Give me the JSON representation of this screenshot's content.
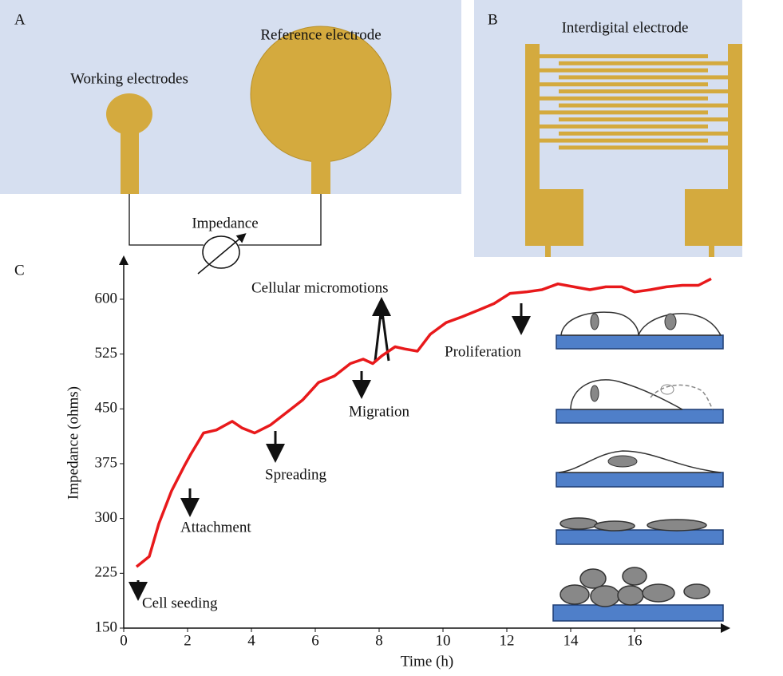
{
  "diagrams": {
    "panel_a": {
      "label": "A",
      "working": "Working electrodes",
      "reference": "Reference electrode",
      "impedance": "Impedance"
    },
    "panel_b": {
      "label": "B",
      "title": "Interdigital electrode"
    }
  },
  "chart_data": {
    "type": "line",
    "label": "C",
    "xlabel": "Time (h)",
    "ylabel": "Impedance (ohms)",
    "color": "#e8191b",
    "x": [
      0.4,
      0.8,
      1.1,
      1.5,
      1.9,
      2.1,
      2.5,
      2.9,
      3.4,
      3.7,
      4.1,
      4.6,
      5.1,
      5.6,
      6.1,
      6.6,
      7.1,
      7.5,
      7.8,
      8.1,
      8.5,
      8.8,
      9.2,
      9.6,
      10.1,
      10.6,
      11.1,
      11.6,
      12.1,
      12.6,
      13.1,
      13.6,
      14.1,
      14.6,
      15.1,
      15.6,
      16.0,
      16.5,
      17.0,
      17.5,
      18.0,
      18.4
    ],
    "values": [
      234,
      248,
      293,
      338,
      372,
      388,
      417,
      421,
      433,
      424,
      417,
      428,
      445,
      462,
      486,
      495,
      512,
      518,
      512,
      523,
      535,
      532,
      529,
      552,
      568,
      576,
      585,
      594,
      608,
      610,
      613,
      621,
      617,
      613,
      617,
      617,
      610,
      613,
      617,
      619,
      619,
      628
    ],
    "xlim": [
      0,
      19
    ],
    "ylim": [
      150,
      660
    ],
    "xticks": [
      0,
      2,
      4,
      6,
      8,
      10,
      12,
      14,
      16
    ],
    "yticks": [
      150,
      225,
      300,
      375,
      450,
      525,
      600
    ],
    "annotations": [
      "Cell seeding",
      "Attachment",
      "Spreading",
      "Migration",
      "Cellular micromotions",
      "Proliferation"
    ]
  }
}
